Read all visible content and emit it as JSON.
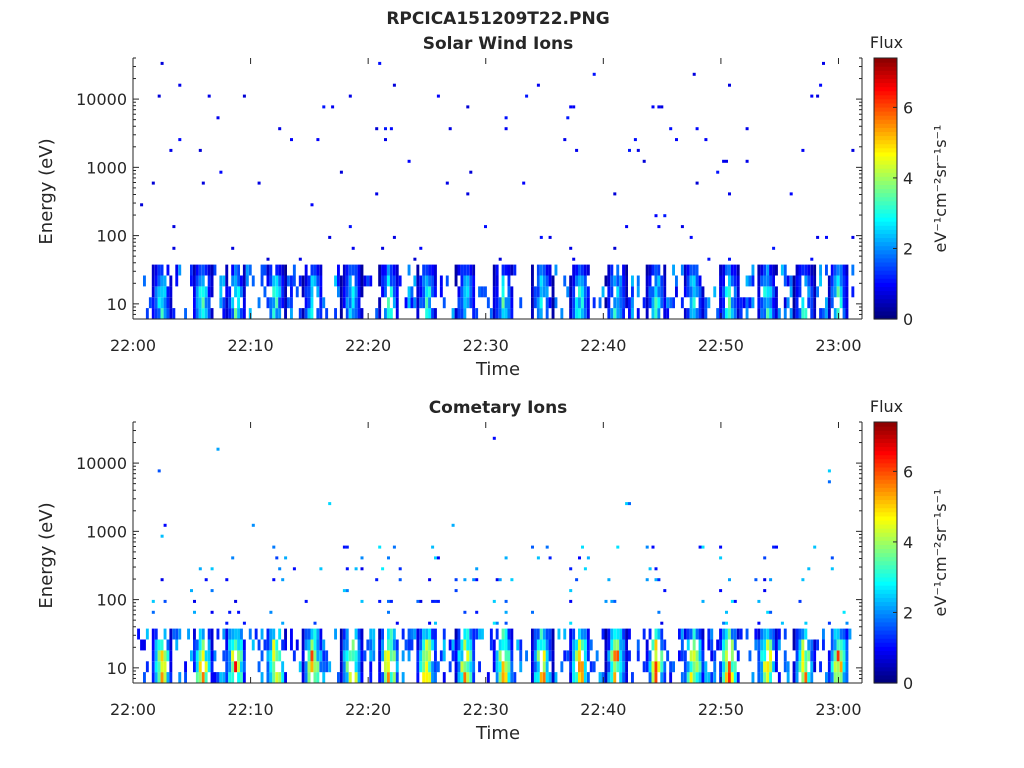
{
  "figure_title": "RPCICA151209T22.PNG",
  "chart_data": [
    {
      "type": "heatmap",
      "title": "Solar Wind Ions",
      "xlabel": "Time",
      "ylabel": "Energy (eV)",
      "x_range_minutes": [
        0,
        62
      ],
      "x_ticks": [
        {
          "label": "22:00",
          "min": 0
        },
        {
          "label": "22:10",
          "min": 10
        },
        {
          "label": "22:20",
          "min": 20
        },
        {
          "label": "22:30",
          "min": 30
        },
        {
          "label": "22:40",
          "min": 40
        },
        {
          "label": "22:50",
          "min": 50
        },
        {
          "label": "23:00",
          "min": 60
        }
      ],
      "y_scale": "log",
      "y_range": [
        6,
        40000
      ],
      "y_ticks": [
        {
          "label": "10",
          "value": 10
        },
        {
          "label": "100",
          "value": 100
        },
        {
          "label": "1000",
          "value": 1000
        },
        {
          "label": "10000",
          "value": 10000
        }
      ],
      "colorbar": {
        "title": "Flux",
        "label": "eV⁻¹cm⁻²sr⁻¹s⁻¹",
        "range": [
          0,
          7.4
        ],
        "ticks": [
          "0",
          "2",
          "4",
          "6"
        ],
        "colormap": "jet"
      },
      "burst_minutes": [
        2.3,
        5.8,
        8.6,
        12,
        15.2,
        18.5,
        21.7,
        24.9,
        28.2,
        31.4,
        34.7,
        37.9,
        41,
        44.4,
        47.6,
        50.6,
        53.8,
        57,
        59.9
      ],
      "burst_peak_flux": 3.6,
      "background_flux": 1.0
    },
    {
      "type": "heatmap",
      "title": "Cometary Ions",
      "xlabel": "Time",
      "ylabel": "Energy (eV)",
      "x_range_minutes": [
        0,
        62
      ],
      "x_ticks": [
        {
          "label": "22:00",
          "min": 0
        },
        {
          "label": "22:10",
          "min": 10
        },
        {
          "label": "22:20",
          "min": 20
        },
        {
          "label": "22:30",
          "min": 30
        },
        {
          "label": "22:40",
          "min": 40
        },
        {
          "label": "22:50",
          "min": 50
        },
        {
          "label": "23:00",
          "min": 60
        }
      ],
      "y_scale": "log",
      "y_range": [
        6,
        40000
      ],
      "y_ticks": [
        {
          "label": "10",
          "value": 10
        },
        {
          "label": "100",
          "value": 100
        },
        {
          "label": "1000",
          "value": 1000
        },
        {
          "label": "10000",
          "value": 10000
        }
      ],
      "colorbar": {
        "title": "Flux",
        "label": "eV⁻¹cm⁻²sr⁻¹s⁻¹",
        "range": [
          0,
          7.4
        ],
        "ticks": [
          "0",
          "2",
          "4",
          "6"
        ],
        "colormap": "jet"
      },
      "burst_minutes": [
        2.3,
        5.8,
        8.6,
        12,
        15.2,
        18.5,
        21.7,
        24.9,
        28.2,
        31.4,
        34.7,
        37.9,
        41,
        44.4,
        47.6,
        50.6,
        53.8,
        57,
        59.9
      ],
      "burst_peak_flux": 6.4,
      "background_flux": 1.0
    }
  ]
}
